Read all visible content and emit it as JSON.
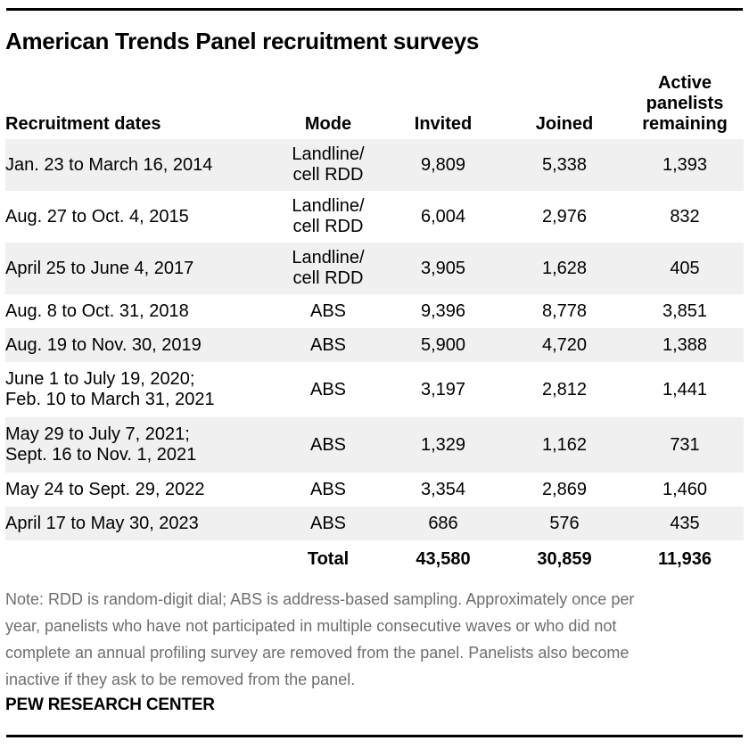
{
  "chart_data": {
    "type": "table",
    "title": "American Trends Panel recruitment surveys",
    "columns": {
      "dates": "Recruitment dates",
      "mode": "Mode",
      "invited": "Invited",
      "joined": "Joined",
      "active": "Active panelists remaining"
    },
    "rows": [
      {
        "dates": "Jan. 23 to March 16, 2014",
        "mode": "Landline/\ncell RDD",
        "invited": "9,809",
        "joined": "5,338",
        "active": "1,393"
      },
      {
        "dates": "Aug. 27 to Oct. 4, 2015",
        "mode": "Landline/\ncell RDD",
        "invited": "6,004",
        "joined": "2,976",
        "active": "832"
      },
      {
        "dates": "April 25 to June 4, 2017",
        "mode": "Landline/\ncell RDD",
        "invited": "3,905",
        "joined": "1,628",
        "active": "405"
      },
      {
        "dates": "Aug. 8 to Oct. 31, 2018",
        "mode": "ABS",
        "invited": "9,396",
        "joined": "8,778",
        "active": "3,851"
      },
      {
        "dates": "Aug. 19 to Nov. 30, 2019",
        "mode": "ABS",
        "invited": "5,900",
        "joined": "4,720",
        "active": "1,388"
      },
      {
        "dates": "June 1 to July 19, 2020;\nFeb. 10 to March 31, 2021",
        "mode": "ABS",
        "invited": "3,197",
        "joined": "2,812",
        "active": "1,441"
      },
      {
        "dates": "May 29 to July 7, 2021;\nSept. 16 to Nov. 1, 2021",
        "mode": "ABS",
        "invited": "1,329",
        "joined": "1,162",
        "active": "731"
      },
      {
        "dates": "May 24 to Sept. 29, 2022",
        "mode": "ABS",
        "invited": "3,354",
        "joined": "2,869",
        "active": "1,460"
      },
      {
        "dates": "April 17 to May 30, 2023",
        "mode": "ABS",
        "invited": "686",
        "joined": "576",
        "active": "435"
      }
    ],
    "total": {
      "dates": "",
      "label": "Total",
      "invited": "43,580",
      "joined": "30,859",
      "active": "11,936"
    },
    "note_lines": [
      "Note: RDD is random-digit dial; ABS is address-based sampling. Approximately once per",
      "year, panelists who have not participated in multiple consecutive waves or who did not",
      "complete an annual profiling survey are removed from the panel. Panelists also become",
      "inactive if they ask to be removed from the panel."
    ],
    "source": "PEW RESEARCH CENTER"
  },
  "colors": {
    "row_shade": "#f0f0f0",
    "note_text": "#6e6e6e",
    "rule": "#000000",
    "text": "#000000"
  }
}
